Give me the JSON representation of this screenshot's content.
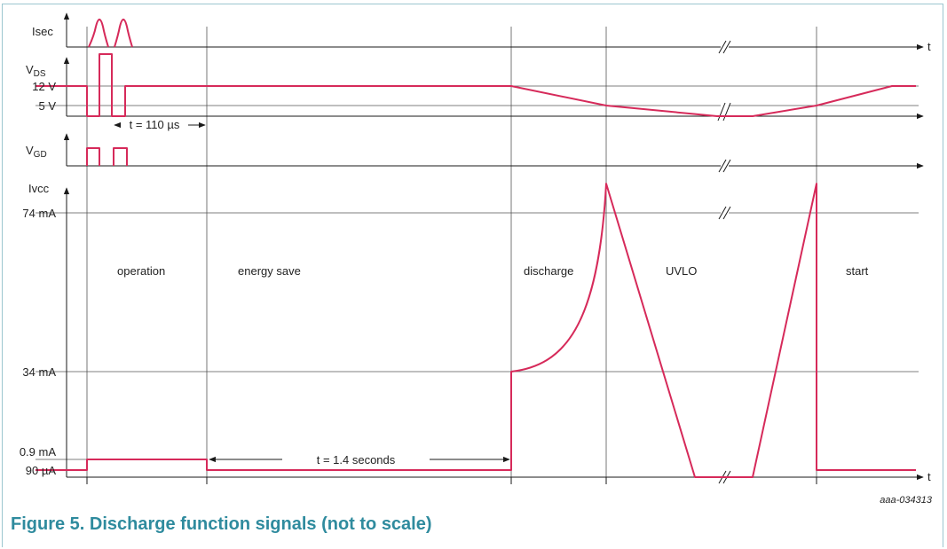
{
  "figure": {
    "caption": "Figure 5.  Discharge function signals (not to scale)",
    "figure_id": "aaa-034313"
  },
  "colors": {
    "signal": "#d62a5a",
    "axis": "#1a1a1a",
    "grid": "#555555",
    "caption": "#2f8b9e",
    "frame": "#9cc6cf"
  },
  "signals": {
    "isec": "Isec",
    "vds_main": "V",
    "vds_sub": "DS",
    "vgd_main": "V",
    "vgd_sub": "GD",
    "ivcc": "Ivcc"
  },
  "time_symbol": "t",
  "levels": {
    "v12": "12 V",
    "v5": "5 V",
    "i74": "74 mA",
    "i34": "34 mA",
    "i09": "0.9 mA",
    "i90u": "90 µA"
  },
  "phases": {
    "operation": "operation",
    "energy_save": "energy save",
    "discharge": "discharge",
    "uvlo": "UVLO",
    "start": "start"
  },
  "annotations": {
    "t110": "t = 110 µs",
    "t14": "t = 1.4 seconds"
  }
}
